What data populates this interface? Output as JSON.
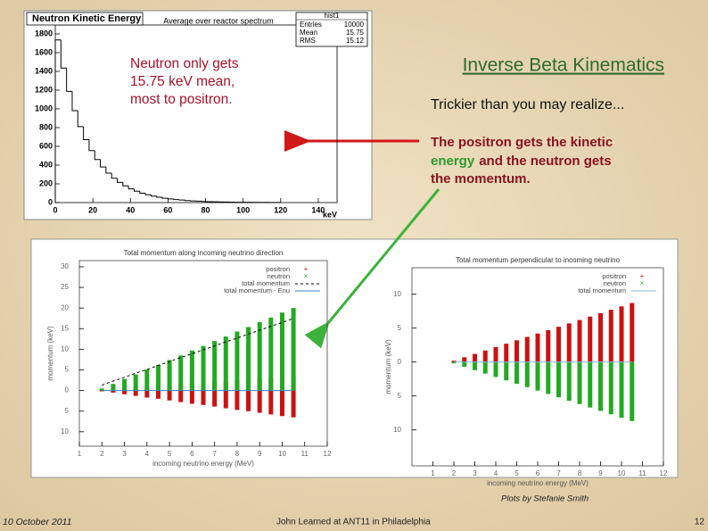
{
  "slide": {
    "title": "Inverse Beta Kinematics",
    "subtitle": "Trickier than you may realize...",
    "callout_left": [
      "Neutron only gets",
      "15.75 keV mean,",
      "most to positron."
    ],
    "callout_right": [
      "The positron gets the kinetic",
      "energy",
      "and the neutron gets",
      "the momentum."
    ],
    "credit": "Plots by Stefanie Smith",
    "footer": {
      "date": "10 October 2011",
      "center": "John Learned at ANT11 in Philadelphia",
      "page": "12"
    }
  },
  "chart_data": [
    {
      "type": "histogram",
      "title": "Neutron Kinetic Energy",
      "subtitle": "Average over reactor spectrum",
      "x_label": "keV",
      "bins": [
        0,
        3,
        6,
        9,
        12,
        15,
        18,
        21,
        24,
        27,
        30,
        33,
        36,
        39,
        42,
        45,
        48,
        51,
        54,
        57,
        60,
        63,
        66,
        69,
        72,
        75,
        78,
        81,
        84,
        87,
        90,
        93,
        96,
        99,
        102,
        105,
        108,
        111,
        114,
        117,
        120
      ],
      "counts": [
        1735,
        1435,
        1187,
        981,
        811,
        671,
        555,
        459,
        380,
        314,
        260,
        215,
        178,
        147,
        121,
        100,
        83,
        69,
        57,
        47,
        39,
        32,
        27,
        22,
        18,
        15,
        12,
        10,
        8,
        7,
        6,
        5,
        4,
        3,
        3,
        2,
        2,
        2,
        1,
        1
      ],
      "color": "#000000",
      "xlim": [
        0,
        150
      ],
      "xticks": [
        0,
        20,
        40,
        60,
        80,
        100,
        120,
        140
      ],
      "ylim": [
        0,
        1895
      ],
      "yticks": [
        0,
        200,
        400,
        600,
        800,
        1000,
        1200,
        1400,
        1600,
        1800
      ],
      "stats": {
        "name": "hist1",
        "rows": [
          {
            "label": "Entries",
            "value": 10000
          },
          {
            "label": "Mean",
            "value": 15.75
          },
          {
            "label": "RMS",
            "value": 15.12
          }
        ]
      }
    },
    {
      "type": "range",
      "title": "Total momentum along incoming neutrino direction",
      "x_label": "incoming neutrino energy (MeV)",
      "y_label": "momentum (keV)",
      "x": [
        2,
        2.5,
        3,
        3.5,
        4,
        4.5,
        5,
        5.5,
        6,
        6.5,
        7,
        7.5,
        8,
        8.5,
        9,
        9.5,
        10,
        10.5
      ],
      "series": [
        {
          "name": "positron",
          "color": "#cc1111",
          "low": [
            -0.2,
            -0.5,
            -0.9,
            -1.3,
            -1.7,
            -2,
            -2.4,
            -2.8,
            -3.2,
            -3.5,
            -3.9,
            -4.3,
            -4.7,
            -5,
            -5.4,
            -5.8,
            -6.2,
            -6.5
          ],
          "high": [
            0.1,
            0.3,
            0.5,
            0.7,
            0.9,
            1.1,
            1.3,
            1.5,
            1.7,
            1.9,
            2.1,
            2.3,
            2.5,
            2.7,
            2.9,
            3.1,
            3.3,
            3.5
          ]
        },
        {
          "name": "neutron",
          "color": "#22aa22",
          "low": [
            0,
            0,
            0,
            0,
            0,
            0,
            0,
            0,
            0,
            0,
            0,
            0,
            0,
            0,
            0,
            0,
            0,
            0
          ],
          "high": [
            0.5,
            1.6,
            2.8,
            3.9,
            5.1,
            6.2,
            7.4,
            8.5,
            9.7,
            10.8,
            12,
            13.1,
            14.3,
            15.4,
            16.6,
            17.7,
            18.9,
            20
          ]
        },
        {
          "name": "total momentum",
          "color": "#000000",
          "dashed": true,
          "values": [
            1.3,
            2.3,
            3.2,
            4.2,
            5.1,
            6.1,
            7,
            8,
            8.9,
            9.9,
            10.8,
            11.8,
            12.7,
            13.7,
            14.6,
            15.6,
            16.5,
            17.5
          ]
        },
        {
          "name": "total momentum - Enu",
          "color": "#3b7fc4",
          "dashed": false,
          "values": [
            0,
            0,
            0,
            0,
            0,
            0,
            0,
            0,
            0,
            0,
            0,
            0,
            0,
            0,
            0,
            0,
            0,
            0
          ]
        }
      ],
      "xlim": [
        1,
        12
      ],
      "xticks": [
        1,
        2,
        3,
        4,
        5,
        6,
        7,
        8,
        9,
        10,
        11,
        12
      ],
      "ylim": [
        -13.5,
        31.5
      ],
      "yticks": [
        {
          "value": -10,
          "label": "10"
        },
        {
          "value": -5,
          "label": "5"
        },
        0,
        5,
        10,
        15,
        20,
        25,
        30
      ]
    },
    {
      "type": "range",
      "title": "Total momentum perpendicular to incoming neutrino",
      "x_label": "incoming neutrino energy (MeV)",
      "y_label": "momentum (keV)",
      "x": [
        2,
        2.5,
        3,
        3.5,
        4,
        4.5,
        5,
        5.5,
        6,
        6.5,
        7,
        7.5,
        8,
        8.5,
        9,
        9.5,
        10,
        10.5
      ],
      "series": [
        {
          "name": "positron",
          "color": "#cc1111",
          "low": [
            0,
            0,
            0,
            0,
            0,
            0,
            0,
            0,
            0,
            0,
            0,
            0,
            0,
            0,
            0,
            0,
            0,
            0
          ],
          "high": [
            0.2,
            0.7,
            1.2,
            1.7,
            2.2,
            2.7,
            3.2,
            3.7,
            4.2,
            4.7,
            5.2,
            5.7,
            6.2,
            6.7,
            7.2,
            7.7,
            8.2,
            8.7
          ]
        },
        {
          "name": "neutron",
          "color": "#22aa22",
          "low": [
            -0.2,
            -0.7,
            -1.2,
            -1.7,
            -2.2,
            -2.7,
            -3.2,
            -3.7,
            -4.2,
            -4.7,
            -5.2,
            -5.7,
            -6.2,
            -6.7,
            -7.2,
            -7.7,
            -8.2,
            -8.7
          ],
          "high": [
            0,
            0,
            0,
            0,
            0,
            0,
            0,
            0,
            0,
            0,
            0,
            0,
            0,
            0,
            0,
            0,
            0,
            0
          ]
        },
        {
          "name": "total momentum",
          "color": "#7fb8e0",
          "dashed": false,
          "values": [
            0,
            0,
            0,
            0,
            0,
            0,
            0,
            0,
            0,
            0,
            0,
            0,
            0,
            0,
            0,
            0,
            0,
            0
          ]
        }
      ],
      "xlim": [
        0,
        12
      ],
      "xticks": [
        1,
        2,
        3,
        4,
        5,
        6,
        7,
        8,
        9,
        10,
        11,
        12
      ],
      "ylim": [
        -15.3,
        13.9
      ],
      "yticks": [
        {
          "value": -10,
          "label": "10"
        },
        {
          "value": -5,
          "label": "5"
        },
        0,
        5,
        10
      ]
    }
  ]
}
